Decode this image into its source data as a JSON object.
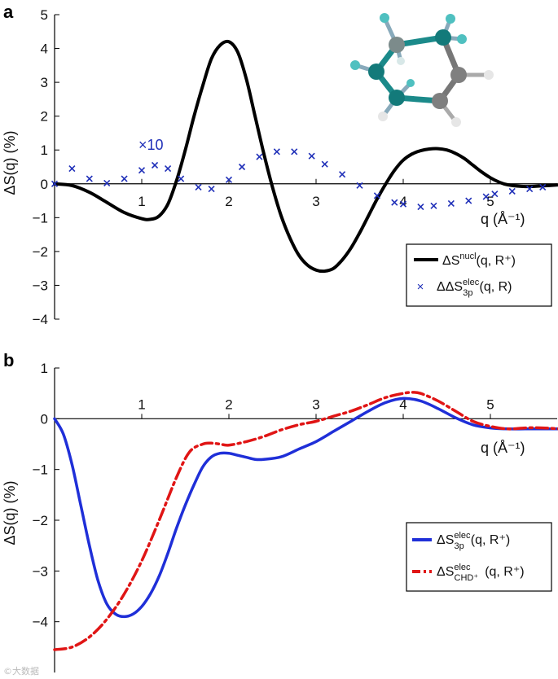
{
  "chart_data": [
    {
      "panel": "a",
      "type": "line",
      "ylabel": "ΔS(q) (%)",
      "xlabel": "q (Å⁻¹)",
      "xlim": [
        0,
        5.8
      ],
      "ylim": [
        -4,
        5
      ],
      "xticks": [
        1,
        2,
        3,
        4,
        5
      ],
      "yticks": [
        -4,
        -3,
        -2,
        -1,
        0,
        1,
        2,
        3,
        4,
        5
      ],
      "annotation": "×10",
      "legend_position": "bottom-right",
      "series": [
        {
          "name": "ΔS^nucl(q, R⁺)",
          "style": "solid",
          "color": "#000000",
          "x": [
            0,
            0.2,
            0.4,
            0.6,
            0.8,
            1.0,
            1.1,
            1.2,
            1.3,
            1.4,
            1.5,
            1.6,
            1.7,
            1.8,
            1.9,
            2.0,
            2.1,
            2.2,
            2.3,
            2.4,
            2.5,
            2.6,
            2.7,
            2.8,
            2.9,
            3.0,
            3.1,
            3.2,
            3.3,
            3.4,
            3.5,
            3.6,
            3.7,
            3.8,
            3.9,
            4.0,
            4.1,
            4.2,
            4.3,
            4.4,
            4.5,
            4.6,
            4.7,
            4.8,
            4.9,
            5.0,
            5.1,
            5.2,
            5.4,
            5.6,
            5.8
          ],
          "y": [
            0,
            -0.05,
            -0.25,
            -0.55,
            -0.85,
            -1.03,
            -1.05,
            -0.95,
            -0.6,
            0.1,
            1.0,
            2.0,
            2.9,
            3.7,
            4.1,
            4.2,
            3.9,
            3.1,
            2.0,
            0.9,
            -0.1,
            -0.95,
            -1.6,
            -2.1,
            -2.4,
            -2.55,
            -2.58,
            -2.5,
            -2.25,
            -1.9,
            -1.45,
            -0.95,
            -0.45,
            0.0,
            0.4,
            0.7,
            0.88,
            0.98,
            1.03,
            1.04,
            1.0,
            0.9,
            0.75,
            0.55,
            0.35,
            0.18,
            0.05,
            -0.03,
            -0.08,
            -0.06,
            -0.03
          ]
        },
        {
          "name": "ΔΔS^elec_3p(q, R)",
          "style": "markers-x",
          "color": "#1f2fb8",
          "x": [
            0.0,
            0.2,
            0.4,
            0.6,
            0.8,
            1.0,
            1.15,
            1.3,
            1.45,
            1.65,
            1.8,
            2.0,
            2.15,
            2.35,
            2.55,
            2.75,
            2.95,
            3.1,
            3.3,
            3.5,
            3.7,
            3.9,
            4.0,
            4.2,
            4.35,
            4.55,
            4.75,
            4.95,
            5.05,
            5.25,
            5.45,
            5.6
          ],
          "y": [
            0,
            0.45,
            0.15,
            0.02,
            0.15,
            0.4,
            0.55,
            0.45,
            0.15,
            -0.1,
            -0.15,
            0.12,
            0.5,
            0.8,
            0.95,
            0.95,
            0.82,
            0.58,
            0.28,
            -0.05,
            -0.35,
            -0.55,
            -0.6,
            -0.68,
            -0.65,
            -0.58,
            -0.5,
            -0.38,
            -0.3,
            -0.22,
            -0.15,
            -0.1
          ]
        }
      ]
    },
    {
      "panel": "b",
      "type": "line",
      "ylabel": "ΔS(q) (%)",
      "xlabel": "q (Å⁻¹)",
      "xlim": [
        0,
        5.8
      ],
      "ylim": [
        -5,
        1
      ],
      "xticks": [
        1,
        2,
        3,
        4,
        5
      ],
      "yticks": [
        -4,
        -3,
        -2,
        -1,
        0,
        1
      ],
      "legend_position": "bottom-right",
      "series": [
        {
          "name": "ΔS^elec_3p(q, R⁺)",
          "style": "solid",
          "color": "#1f2fd8",
          "x": [
            0,
            0.1,
            0.2,
            0.3,
            0.4,
            0.5,
            0.6,
            0.7,
            0.8,
            0.9,
            1.0,
            1.1,
            1.2,
            1.3,
            1.4,
            1.5,
            1.6,
            1.7,
            1.8,
            1.9,
            2.0,
            2.1,
            2.2,
            2.3,
            2.4,
            2.6,
            2.8,
            3.0,
            3.2,
            3.4,
            3.6,
            3.8,
            4.0,
            4.2,
            4.4,
            4.6,
            4.8,
            5.0,
            5.2,
            5.4,
            5.6,
            5.8
          ],
          "y": [
            0,
            -0.3,
            -0.9,
            -1.7,
            -2.5,
            -3.2,
            -3.65,
            -3.85,
            -3.9,
            -3.85,
            -3.7,
            -3.45,
            -3.1,
            -2.65,
            -2.15,
            -1.7,
            -1.3,
            -0.95,
            -0.75,
            -0.68,
            -0.68,
            -0.72,
            -0.76,
            -0.8,
            -0.8,
            -0.75,
            -0.6,
            -0.45,
            -0.25,
            -0.05,
            0.15,
            0.32,
            0.4,
            0.35,
            0.2,
            0.02,
            -0.12,
            -0.18,
            -0.2,
            -0.2,
            -0.2,
            -0.2
          ]
        },
        {
          "name": "ΔS^elec_CHD⁺(q, R⁺)",
          "style": "dash-dot",
          "color": "#e01515",
          "x": [
            0,
            0.2,
            0.4,
            0.6,
            0.8,
            1.0,
            1.2,
            1.4,
            1.55,
            1.7,
            1.8,
            1.9,
            2.0,
            2.2,
            2.4,
            2.6,
            2.8,
            3.0,
            3.2,
            3.4,
            3.6,
            3.8,
            4.0,
            4.1,
            4.2,
            4.4,
            4.6,
            4.8,
            5.0,
            5.2,
            5.4,
            5.6,
            5.8
          ],
          "y": [
            -4.55,
            -4.5,
            -4.3,
            -3.95,
            -3.45,
            -2.8,
            -2.0,
            -1.15,
            -0.65,
            -0.5,
            -0.48,
            -0.5,
            -0.52,
            -0.45,
            -0.35,
            -0.22,
            -0.12,
            -0.05,
            0.05,
            0.15,
            0.28,
            0.42,
            0.5,
            0.52,
            0.5,
            0.35,
            0.15,
            -0.05,
            -0.15,
            -0.2,
            -0.18,
            -0.18,
            -0.2
          ]
        }
      ]
    }
  ],
  "labels": {
    "panel_a": "a",
    "panel_b": "b",
    "annotation_a": "×10",
    "legend_a_1": "ΔS",
    "legend_a_1_sup": "nucl",
    "legend_a_1_tail": "(q, R⁺)",
    "legend_a_2": "ΔΔS",
    "legend_a_2_sup": "elec",
    "legend_a_2_sub": "3p",
    "legend_a_2_tail": "(q, R)",
    "legend_b_1": "ΔS",
    "legend_b_1_sup": "elec",
    "legend_b_1_sub": "3p",
    "legend_b_1_tail": "(q, R⁺)",
    "legend_b_2": "ΔS",
    "legend_b_2_sup": "elec",
    "legend_b_2_sub": "CHD⁺",
    "legend_b_2_tail": "(q, R⁺)",
    "xlabel": "q (Å⁻¹)",
    "ylabel": "ΔS(q) (%)",
    "watermark": "©大数据"
  }
}
